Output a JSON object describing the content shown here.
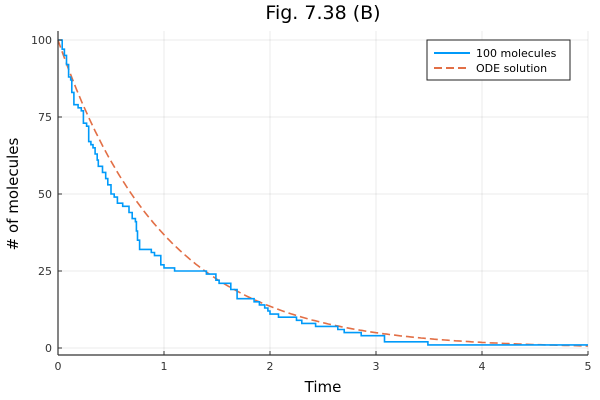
{
  "chart_data": {
    "type": "line",
    "title": "Fig. 7.38 (B)",
    "xlabel": "Time",
    "ylabel": "# of molecules",
    "xlim": [
      0,
      5
    ],
    "ylim": [
      0,
      100
    ],
    "xticks": [
      0,
      1,
      2,
      3,
      4,
      5
    ],
    "yticks": [
      0,
      25,
      50,
      75,
      100
    ],
    "grid": true,
    "legend": "top-right",
    "series": [
      {
        "name": "100 molecules",
        "style": "step",
        "color": "#009af9",
        "points": [
          [
            0,
            100
          ],
          [
            0.04,
            97
          ],
          [
            0.06,
            95
          ],
          [
            0.08,
            92
          ],
          [
            0.1,
            88
          ],
          [
            0.12,
            87
          ],
          [
            0.13,
            83
          ],
          [
            0.15,
            79
          ],
          [
            0.19,
            78
          ],
          [
            0.22,
            77
          ],
          [
            0.24,
            73
          ],
          [
            0.27,
            72
          ],
          [
            0.29,
            67
          ],
          [
            0.31,
            66
          ],
          [
            0.33,
            65
          ],
          [
            0.35,
            63
          ],
          [
            0.37,
            61
          ],
          [
            0.38,
            59
          ],
          [
            0.42,
            57
          ],
          [
            0.45,
            55
          ],
          [
            0.47,
            53
          ],
          [
            0.5,
            50
          ],
          [
            0.53,
            49
          ],
          [
            0.56,
            47
          ],
          [
            0.61,
            46
          ],
          [
            0.67,
            44
          ],
          [
            0.7,
            42
          ],
          [
            0.73,
            41
          ],
          [
            0.74,
            38
          ],
          [
            0.75,
            35
          ],
          [
            0.77,
            32
          ],
          [
            0.88,
            31
          ],
          [
            0.91,
            30
          ],
          [
            0.97,
            27
          ],
          [
            1.0,
            26
          ],
          [
            1.1,
            25
          ],
          [
            1.4,
            24
          ],
          [
            1.49,
            22
          ],
          [
            1.52,
            21
          ],
          [
            1.63,
            19
          ],
          [
            1.69,
            16
          ],
          [
            1.85,
            15
          ],
          [
            1.9,
            14
          ],
          [
            1.95,
            13
          ],
          [
            1.98,
            12
          ],
          [
            2.0,
            11
          ],
          [
            2.08,
            10
          ],
          [
            2.25,
            9
          ],
          [
            2.3,
            8
          ],
          [
            2.43,
            7
          ],
          [
            2.64,
            6
          ],
          [
            2.7,
            5
          ],
          [
            2.86,
            4
          ],
          [
            3.08,
            2
          ],
          [
            3.49,
            1
          ],
          [
            5,
            1
          ]
        ]
      },
      {
        "name": "ODE solution",
        "style": "dashed",
        "color": "#e26f46",
        "function": "100*exp(-t)"
      }
    ]
  }
}
